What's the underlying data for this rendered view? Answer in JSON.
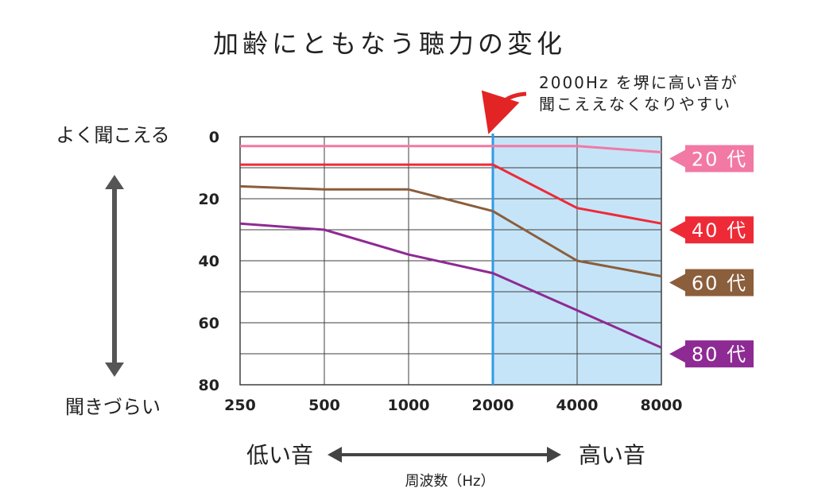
{
  "chart_data": {
    "type": "line",
    "title": "加齢にともなう聴力の変化",
    "annotation": [
      "2000Hz を堺に高い音が",
      "聞こええなくなりやすい"
    ],
    "x": [
      "250",
      "500",
      "1000",
      "2000",
      "4000",
      "8000"
    ],
    "xlabel": "周波数（Hz）",
    "ylabel_top": "よく聞こえる",
    "ylabel_bottom": "聞きづらい",
    "xside_left": "低い音",
    "xside_right": "高い音",
    "y_ticks": [
      "0",
      "20",
      "40",
      "60",
      "80"
    ],
    "ylim": [
      0,
      80
    ],
    "y_inverted": true,
    "grid": true,
    "highlight_from": "2000",
    "highlight_to": "8000",
    "series": [
      {
        "name": "20 代",
        "color": "#f279a4",
        "values": [
          3,
          3,
          3,
          3,
          3,
          5
        ]
      },
      {
        "name": "40 代",
        "color": "#ee2a37",
        "values": [
          9,
          9,
          9,
          9,
          23,
          28
        ]
      },
      {
        "name": "60 代",
        "color": "#8b5e3c",
        "values": [
          16,
          17,
          17,
          24,
          40,
          45
        ]
      },
      {
        "name": "80 代",
        "color": "#8e2a93",
        "values": [
          28,
          30,
          38,
          44,
          56,
          68
        ]
      }
    ],
    "colors": {
      "highlight": "#c5e4f8",
      "marker_line": "#2f9be4",
      "arrow": "#555555",
      "annotation_arrow": "#e32424"
    }
  }
}
